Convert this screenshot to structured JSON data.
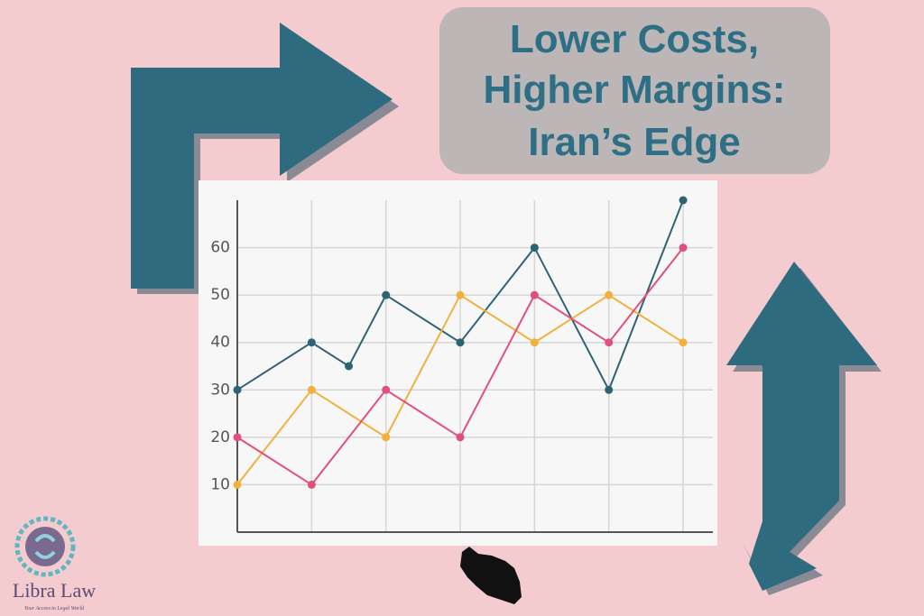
{
  "title": {
    "lines": [
      "Lower Costs,",
      "Higher Margins:",
      "Iran’s Edge"
    ]
  },
  "chart_data": {
    "type": "line",
    "xlim": [
      0,
      6.4
    ],
    "ylim": [
      0,
      70
    ],
    "xticks": [
      0,
      1,
      2,
      3,
      4,
      5,
      6
    ],
    "yticks": [
      10,
      20,
      30,
      40,
      50,
      60
    ],
    "grid": true,
    "series": [
      {
        "color": "#2d6475",
        "x": [
          0,
          1,
          1.5,
          2,
          3,
          4,
          5,
          6
        ],
        "values": [
          30,
          40,
          35,
          50,
          40,
          60,
          30,
          70
        ]
      },
      {
        "color": "#f1b13c",
        "x": [
          0,
          1,
          2,
          3,
          4,
          5,
          6
        ],
        "values": [
          10,
          30,
          20,
          50,
          40,
          50,
          40
        ]
      },
      {
        "color": "#e0507b",
        "x": [
          0,
          1,
          2,
          3,
          4,
          5,
          6
        ],
        "values": [
          20,
          10,
          30,
          20,
          50,
          40,
          60
        ]
      }
    ]
  },
  "logo": {
    "name": "Libra Law",
    "tagline": "Your Access to Legal World"
  }
}
